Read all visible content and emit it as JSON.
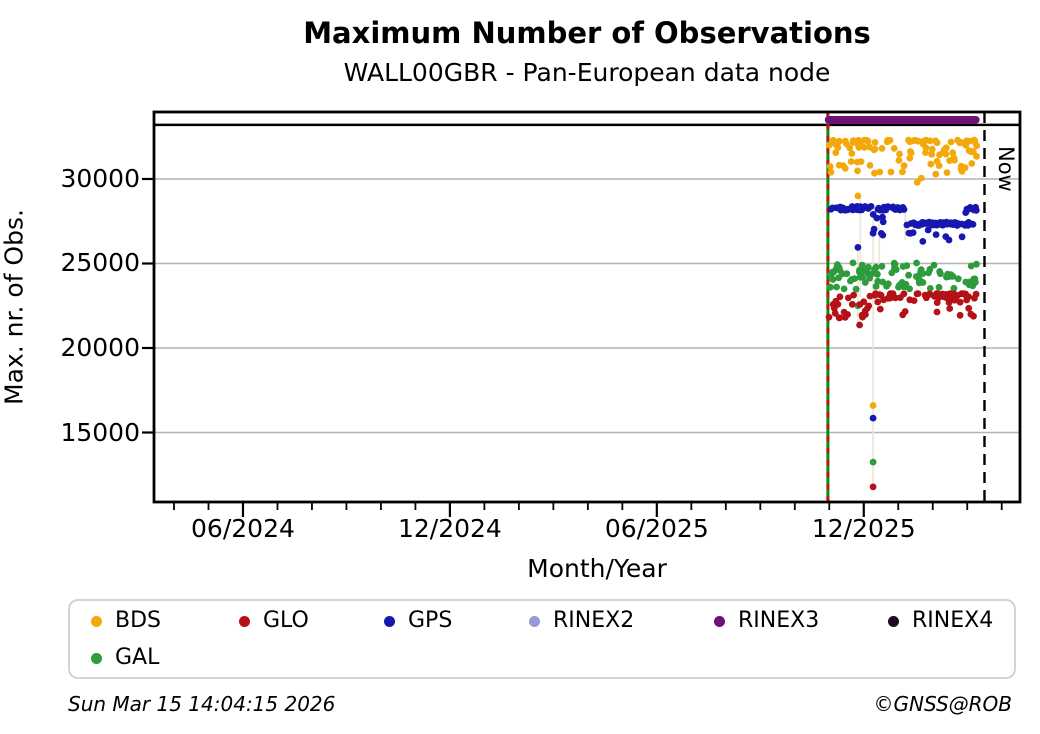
{
  "footer": {
    "timestamp": "Sun Mar 15 14:04:15 2026",
    "credit": "©GNSS@ROB"
  },
  "legend": {
    "items": [
      {
        "label": "BDS",
        "color": "#f3a90b"
      },
      {
        "label": "GLO",
        "color": "#b41217"
      },
      {
        "label": "GPS",
        "color": "#1717b0"
      },
      {
        "label": "RINEX2",
        "color": "#9898d8"
      },
      {
        "label": "RINEX3",
        "color": "#6e1178"
      },
      {
        "label": "RINEX4",
        "color": "#23081f"
      },
      {
        "label": "GAL",
        "color": "#2e9b3c"
      }
    ]
  },
  "chart_data": {
    "type": "scatter",
    "title": "Maximum Number of Observations",
    "subtitle": "WALL00GBR - Pan-European data node",
    "xlabel": "Month/Year",
    "ylabel": "Max. nr. of Obs.",
    "x_unit": "months since 2024-01-01",
    "xlim": [
      2.42,
      27.53
    ],
    "ylim": [
      10888,
      33964
    ],
    "x_major_ticks": [
      {
        "m": 5,
        "label": "06/2024"
      },
      {
        "m": 11,
        "label": "12/2024"
      },
      {
        "m": 17,
        "label": "06/2025"
      },
      {
        "m": 23,
        "label": "12/2025"
      }
    ],
    "x_minor_ticks": {
      "from": 3,
      "to": 27,
      "step": 1
    },
    "y_ticks": [
      15000,
      20000,
      25000,
      30000
    ],
    "grid": "horizontal",
    "reference_line_value": 33200,
    "now_marker": {
      "m": 26.5,
      "label": "Now"
    },
    "data_start_marker": {
      "m": 21.96
    },
    "colors": {
      "grid": "#b4b4b4",
      "frame": "#000000",
      "drop_lines": "#ece5d8",
      "start_line_green": "#0a8a0a",
      "start_line_red": "#cc1111",
      "now_line": "#000000"
    },
    "drop_lines": [
      {
        "m": 22.83,
        "v": [
          21300,
          26000
        ]
      },
      {
        "m": 22.9,
        "v": [
          23000,
          29000
        ]
      },
      {
        "m": 23.27,
        "v": [
          11780,
          28100
        ]
      },
      {
        "m": 23.45,
        "v": [
          22600,
          28200
        ]
      },
      {
        "m": 24.2,
        "v": [
          26400,
          28200
        ]
      }
    ],
    "series": [
      {
        "name": "BDS",
        "color": "#f3a90b",
        "clusters": [
          {
            "m": [
              21.98,
              26.28
            ],
            "v": [
              30250,
              32300
            ],
            "count": 105,
            "bias": "top"
          }
        ],
        "points": [
          [
            22.83,
            29000
          ],
          [
            23.27,
            16600
          ],
          [
            24.55,
            29800
          ],
          [
            24.67,
            30050
          ],
          [
            22.05,
            30400
          ]
        ]
      },
      {
        "name": "GAL",
        "color": "#2e9b3c",
        "clusters": [
          {
            "m": [
              21.98,
              26.28
            ],
            "v": [
              23450,
              25060
            ],
            "count": 95,
            "bias": "none"
          }
        ],
        "points": [
          [
            22.83,
            22500
          ],
          [
            23.27,
            13250
          ]
        ]
      },
      {
        "name": "GLO",
        "color": "#b41217",
        "clusters": [
          {
            "m": [
              21.98,
              23.25
            ],
            "v": [
              21780,
              23150
            ],
            "count": 24,
            "bias": "none"
          },
          {
            "m": [
              23.3,
              26.28
            ],
            "v": [
              22800,
              23220
            ],
            "count": 52,
            "bias": "top"
          },
          {
            "m": [
              23.35,
              26.2
            ],
            "v": [
              21850,
              22780
            ],
            "count": 13,
            "bias": "none"
          }
        ],
        "points": [
          [
            22.88,
            21360
          ],
          [
            23.27,
            11780
          ]
        ]
      },
      {
        "name": "GPS",
        "color": "#1717b0",
        "clusters": [
          {
            "m": [
              21.98,
              23.23
            ],
            "v": [
              28150,
              28380
            ],
            "count": 40,
            "bias": "none"
          },
          {
            "m": [
              23.38,
              24.22
            ],
            "v": [
              28150,
              28380
            ],
            "count": 24,
            "bias": "none"
          },
          {
            "m": [
              24.22,
              26.18
            ],
            "v": [
              27250,
              27450
            ],
            "count": 56,
            "bias": "none"
          },
          {
            "m": [
              24.25,
              25.55
            ],
            "v": [
              26270,
              27100
            ],
            "count": 8,
            "bias": "none"
          },
          {
            "m": [
              23.27,
              23.6
            ],
            "v": [
              26550,
              28000
            ],
            "count": 8,
            "bias": "none"
          },
          {
            "m": [
              25.9,
              26.3
            ],
            "v": [
              27930,
              28340
            ],
            "count": 7,
            "bias": "none"
          }
        ],
        "points": [
          [
            22.83,
            25950
          ],
          [
            23.27,
            15850
          ],
          [
            25.85,
            26580
          ]
        ]
      },
      {
        "name": "RINEX2",
        "color": "#9898d8",
        "clusters": [],
        "points": []
      },
      {
        "name": "RINEX3",
        "color": "#6e1178",
        "band": {
          "m": [
            21.87,
            26.36
          ],
          "value": 33500
        }
      },
      {
        "name": "RINEX4",
        "color": "#23081f",
        "clusters": [],
        "points": []
      }
    ]
  }
}
